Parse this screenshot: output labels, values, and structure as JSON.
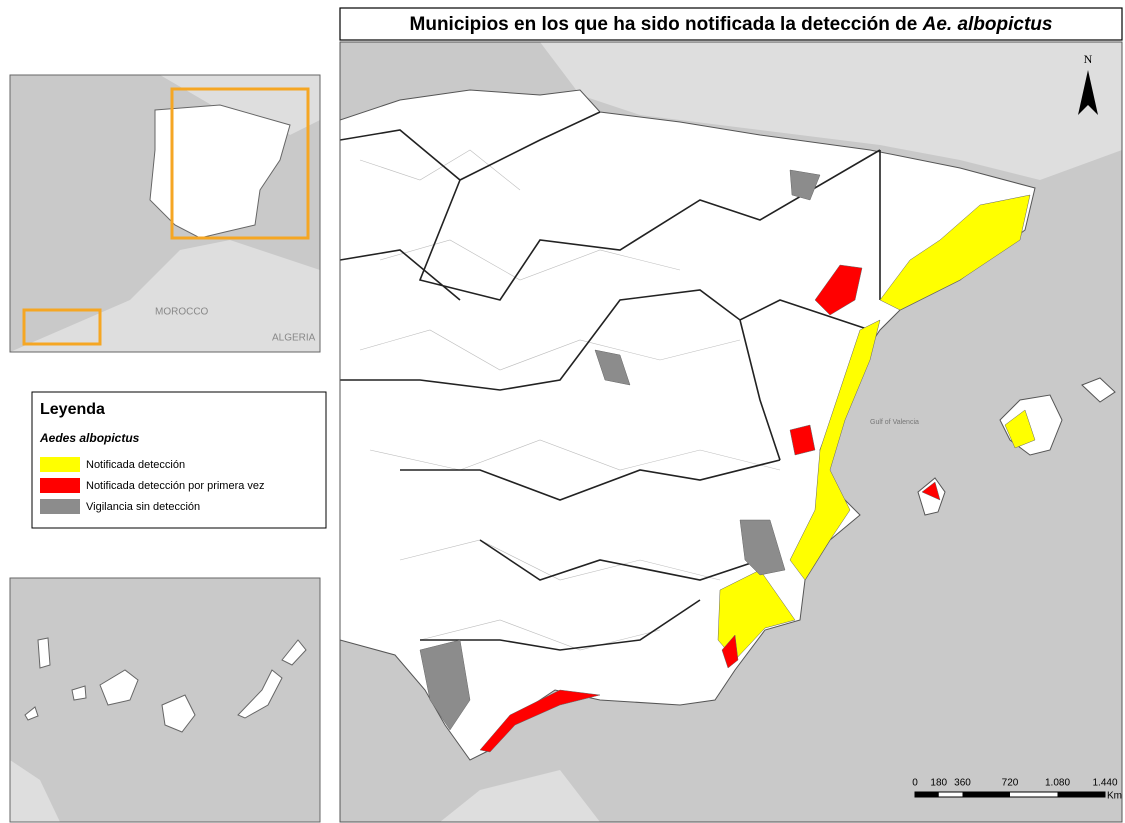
{
  "title": {
    "text": "Municipios en los que ha sido notificada la detección de ",
    "italic": "Ae. albopictus"
  },
  "inset": {
    "labels": [
      "MOROCCO",
      "ALGERIA"
    ]
  },
  "legend": {
    "title": "Leyenda",
    "subtitle": "Aedes albopictus",
    "items": [
      {
        "label": "Notificada detección",
        "color": "#ffff00"
      },
      {
        "label": "Notificada detección por primera vez",
        "color": "#ff0000"
      },
      {
        "label": "Vigilancia sin detección",
        "color": "#8c8c8c"
      }
    ]
  },
  "map": {
    "north": "N",
    "sea_label": "Gulf of Valencia",
    "scale": {
      "labels": [
        "0",
        "180",
        "360",
        "720",
        "1.080",
        "1.440"
      ],
      "unit": "Km"
    }
  }
}
